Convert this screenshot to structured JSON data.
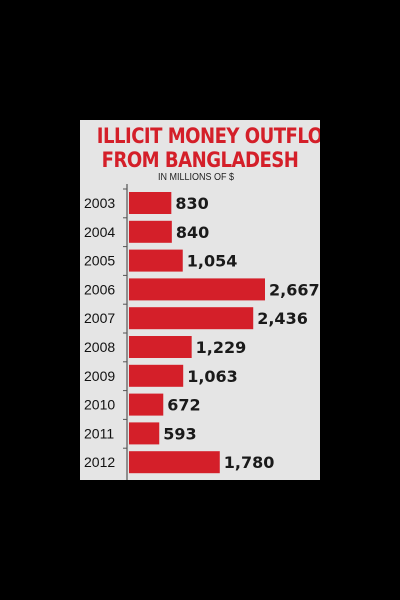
{
  "chart_data": {
    "type": "bar",
    "orientation": "horizontal",
    "title_lines": [
      "ILLICIT MONEY OUTFLOW",
      "FROM BANGLADESH"
    ],
    "subtitle": "IN MILLIONS OF $",
    "categories": [
      "2003",
      "2004",
      "2005",
      "2006",
      "2007",
      "2008",
      "2009",
      "2010",
      "2011",
      "2012"
    ],
    "values": [
      830,
      840,
      1054,
      2667,
      2436,
      1229,
      1063,
      672,
      593,
      1780
    ],
    "value_labels": [
      "830",
      "840",
      "1,054",
      "2,667",
      "2,436",
      "1,229",
      "1,063",
      "672",
      "593",
      "1,780"
    ],
    "bar_color": "#d41f29",
    "title_color": "#d41f29",
    "background_color": "#e5e5e5",
    "grid": false,
    "legend": "none"
  }
}
